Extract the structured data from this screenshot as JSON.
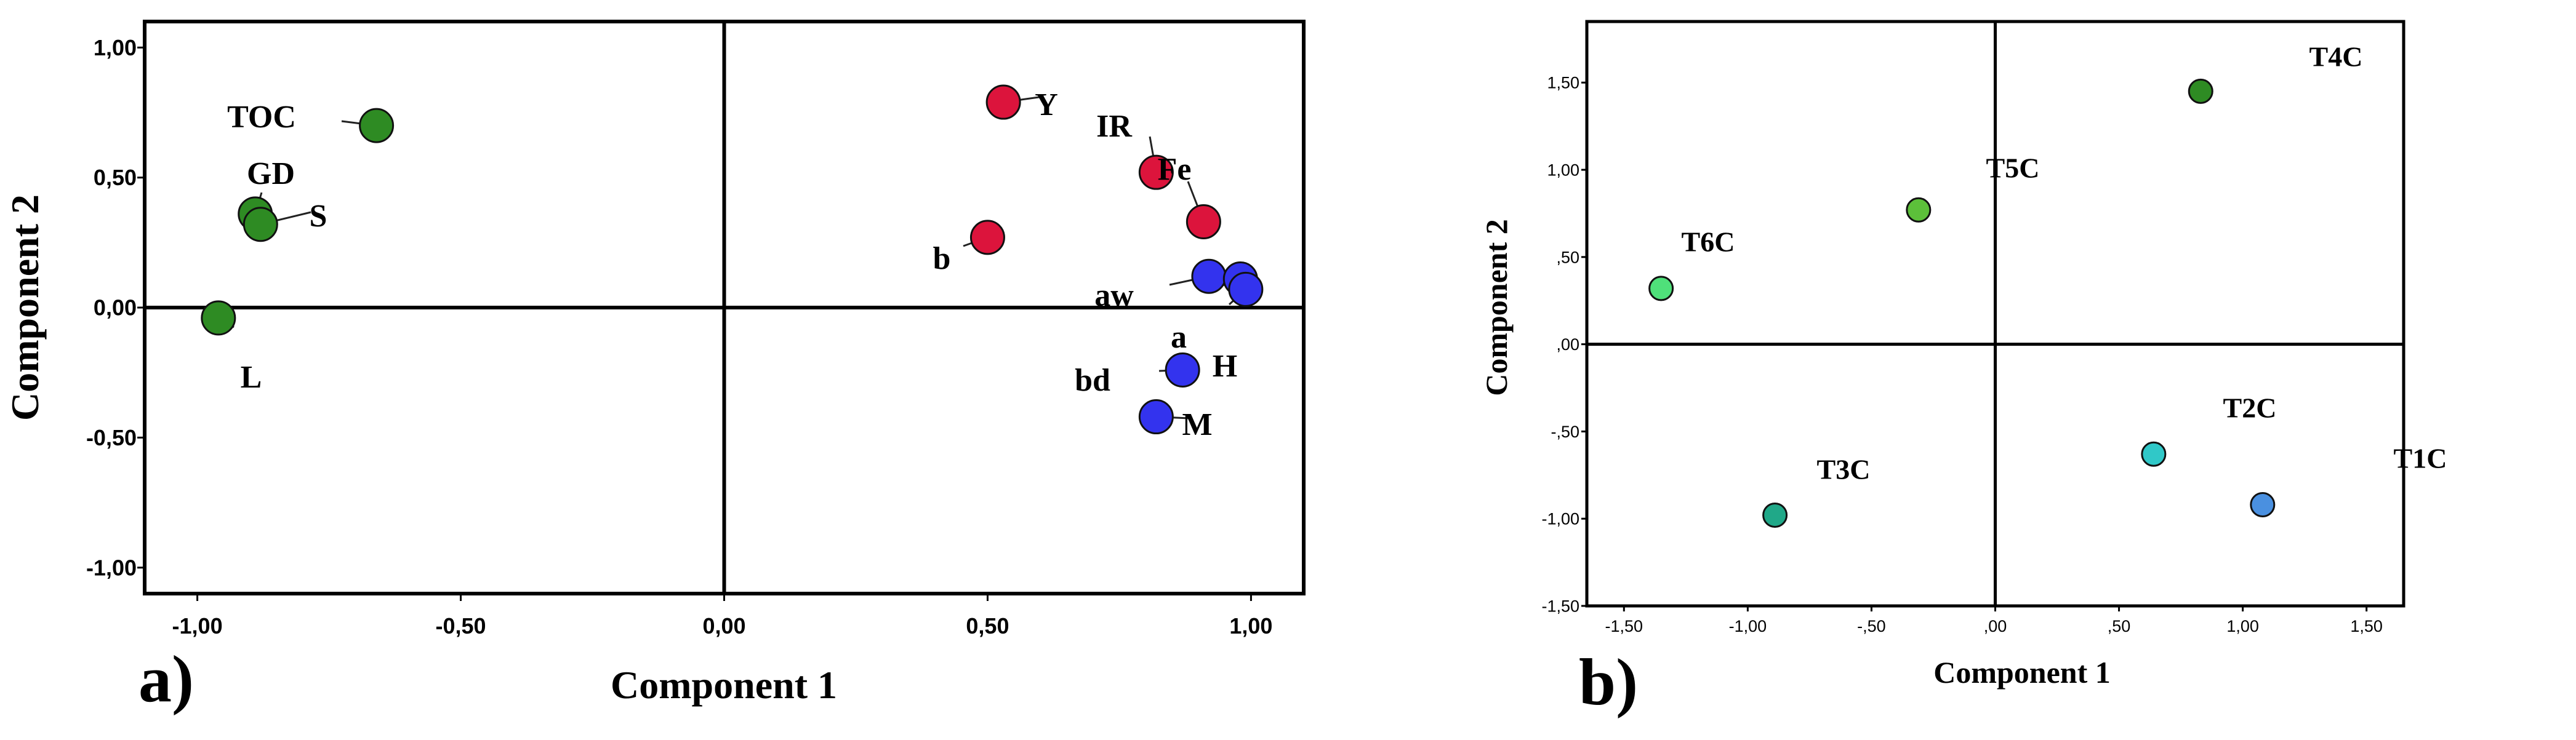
{
  "chart_data": [
    {
      "type": "scatter",
      "panel_label": "a)",
      "xlabel": "Component 1",
      "ylabel": "Component 2",
      "xlim": [
        -1.1,
        1.1
      ],
      "ylim": [
        -1.1,
        1.1
      ],
      "xticks": [
        "-1,00",
        "-0,50",
        "0,00",
        "0,50",
        "1,00"
      ],
      "yticks": [
        "-1,00",
        "-0,50",
        "0,00",
        "0,50",
        "1,00"
      ],
      "xtick_values": [
        -1.0,
        -0.5,
        0.0,
        0.5,
        1.0
      ],
      "ytick_values": [
        -1.0,
        -0.5,
        0.0,
        0.5,
        1.0
      ],
      "grid": false,
      "legend": "none",
      "points": [
        {
          "label": "TOC",
          "x": -0.66,
          "y": 0.7,
          "color": "#2e8b23"
        },
        {
          "label": "GD",
          "x": -0.89,
          "y": 0.36,
          "color": "#2e8b23"
        },
        {
          "label": "S",
          "x": -0.88,
          "y": 0.32,
          "color": "#2e8b23"
        },
        {
          "label": "L",
          "x": -0.96,
          "y": -0.04,
          "color": "#2e8b23"
        },
        {
          "label": "Y",
          "x": 0.53,
          "y": 0.79,
          "color": "#dc143c"
        },
        {
          "label": "IR",
          "x": 0.82,
          "y": 0.52,
          "color": "#dc143c"
        },
        {
          "label": "Fe",
          "x": 0.91,
          "y": 0.33,
          "color": "#dc143c"
        },
        {
          "label": "b",
          "x": 0.5,
          "y": 0.27,
          "color": "#dc143c"
        },
        {
          "label": "aw",
          "x": 0.92,
          "y": 0.12,
          "color": "#3333ee"
        },
        {
          "label": "a",
          "x": 0.98,
          "y": 0.11,
          "color": "#3333ee"
        },
        {
          "label": "H",
          "x": 0.99,
          "y": 0.07,
          "color": "#3333ee"
        },
        {
          "label": "bd",
          "x": 0.87,
          "y": -0.24,
          "color": "#3333ee"
        },
        {
          "label": "M",
          "x": 0.82,
          "y": -0.42,
          "color": "#3333ee"
        }
      ]
    },
    {
      "type": "scatter",
      "panel_label": "b)",
      "xlabel": "Component 1",
      "ylabel": "Component 2",
      "xlim": [
        -1.65,
        1.65
      ],
      "ylim": [
        -1.5,
        1.85
      ],
      "xticks": [
        "-1,50",
        "-1,00",
        "-,50",
        ",00",
        ",50",
        "1,00",
        "1,50"
      ],
      "yticks": [
        "-1,50",
        "-1,00",
        "-,50",
        ",00",
        ",50",
        "1,00",
        "1,50"
      ],
      "xtick_values": [
        -1.5,
        -1.0,
        -0.5,
        0.0,
        0.5,
        1.0,
        1.5
      ],
      "ytick_values": [
        -1.5,
        -1.0,
        -0.5,
        0.0,
        0.5,
        1.0,
        1.5
      ],
      "grid": false,
      "legend": "none",
      "points": [
        {
          "label": "T4C",
          "x": 0.83,
          "y": 1.45,
          "color": "#2e8b23"
        },
        {
          "label": "T5C",
          "x": -0.31,
          "y": 0.77,
          "color": "#5cc03a"
        },
        {
          "label": "T6C",
          "x": -1.35,
          "y": 0.32,
          "color": "#4fe07a"
        },
        {
          "label": "T3C",
          "x": -0.89,
          "y": -0.98,
          "color": "#20a888"
        },
        {
          "label": "T2C",
          "x": 0.64,
          "y": -0.63,
          "color": "#30c8c8"
        },
        {
          "label": "T1C",
          "x": 1.08,
          "y": -0.92,
          "color": "#4a90e0"
        }
      ]
    }
  ]
}
